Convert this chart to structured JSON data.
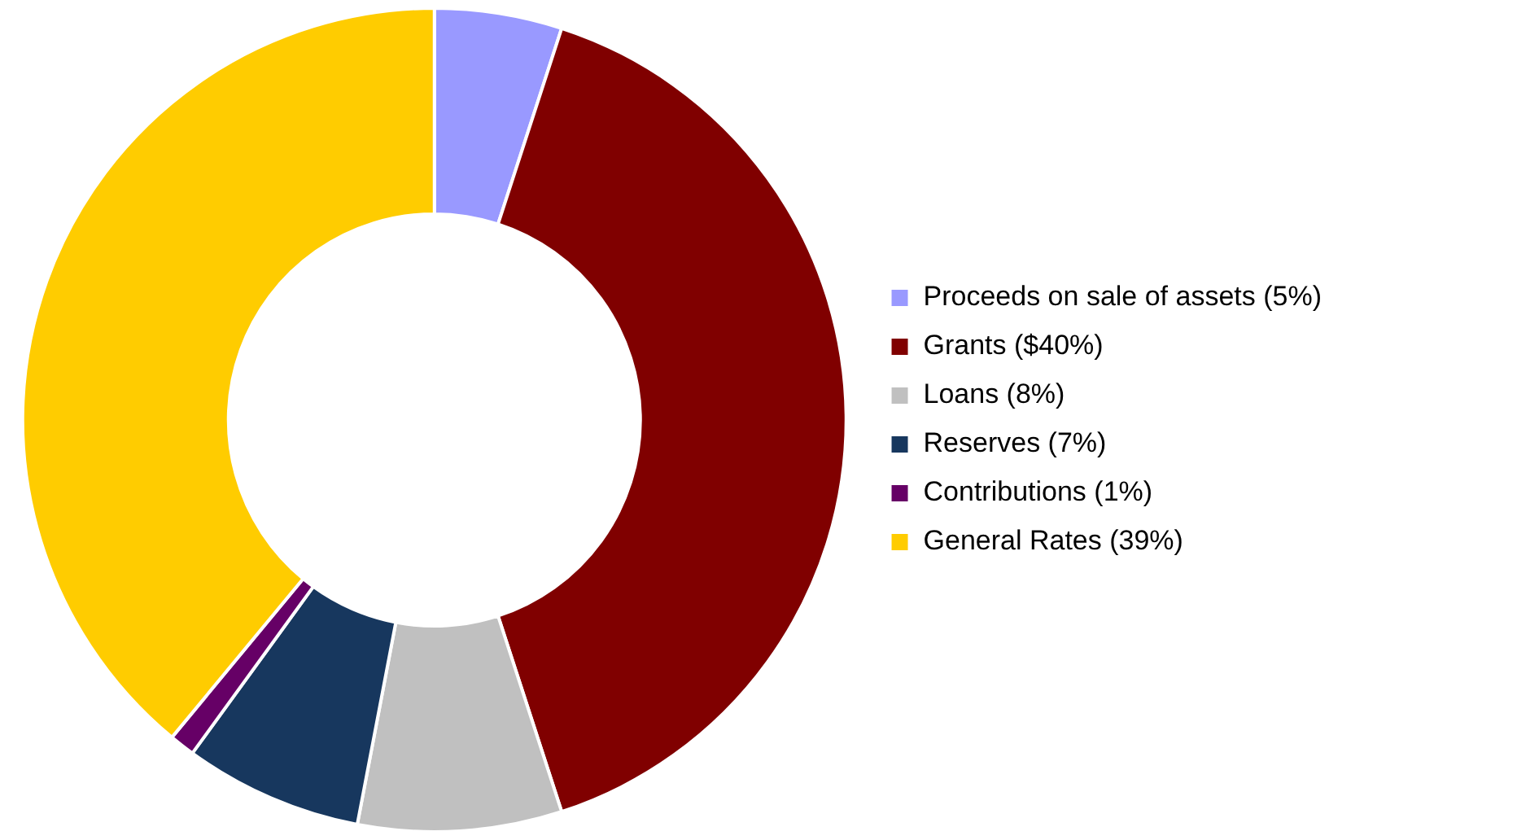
{
  "chart_data": {
    "type": "donut",
    "categories": [
      "Proceeds on sale of assets (5%)",
      "Grants ($40%)",
      "Loans (8%)",
      "Reserves (7%)",
      "Contributions (1%)",
      "General Rates (39%)"
    ],
    "values": [
      5,
      40,
      8,
      7,
      1,
      39
    ],
    "colors": [
      "#9999ff",
      "#800000",
      "#c0c0c0",
      "#17375e",
      "#660066",
      "#ffcc00"
    ],
    "legend": "right"
  }
}
